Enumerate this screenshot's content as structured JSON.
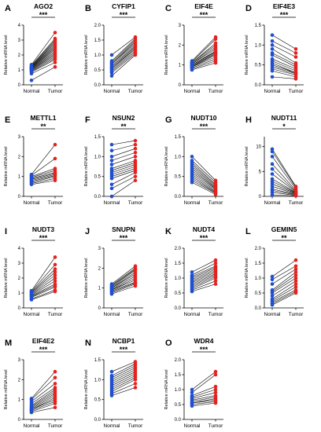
{
  "chart_data": [
    {
      "type": "scatter",
      "letter": "A",
      "title": "AGO2",
      "ylabel": "Relative mRNA level",
      "categories": [
        "Normal",
        "Tumor"
      ],
      "significance": "***",
      "ylim": [
        0,
        4
      ],
      "yticks": [
        0,
        1,
        2,
        3,
        4
      ],
      "normal": [
        0.3,
        0.75,
        0.85,
        0.9,
        0.95,
        1.0,
        1.0,
        1.05,
        1.05,
        1.1,
        1.1,
        1.15,
        1.15,
        1.2,
        1.2,
        1.25,
        1.3,
        1.35
      ],
      "tumor": [
        1.2,
        1.5,
        1.7,
        1.8,
        1.9,
        2.0,
        2.1,
        2.2,
        2.3,
        2.4,
        2.5,
        2.6,
        2.7,
        2.8,
        2.9,
        3.0,
        3.1,
        3.5
      ],
      "colors": {
        "normal": "#1f4fd1",
        "tumor": "#e3221f"
      }
    },
    {
      "type": "scatter",
      "letter": "B",
      "title": "CYFIP1",
      "ylabel": "Relative mRNA level",
      "categories": [
        "Normal",
        "Tumor"
      ],
      "significance": "***",
      "ylim": [
        0,
        2.0
      ],
      "yticks": [
        0,
        0.5,
        1.0,
        1.5,
        2.0
      ],
      "normal": [
        0.3,
        0.4,
        0.45,
        0.5,
        0.55,
        0.55,
        0.6,
        0.6,
        0.65,
        0.7,
        0.7,
        0.75,
        0.8,
        1.0
      ],
      "tumor": [
        1.0,
        1.05,
        1.1,
        1.15,
        1.2,
        1.25,
        1.3,
        1.3,
        1.35,
        1.4,
        1.45,
        1.5,
        1.55,
        1.6
      ],
      "colors": {
        "normal": "#1f4fd1",
        "tumor": "#e3221f"
      }
    },
    {
      "type": "scatter",
      "letter": "C",
      "title": "EIF4E",
      "ylabel": "Relative mRNA level",
      "categories": [
        "Normal",
        "Tumor"
      ],
      "significance": "***",
      "ylim": [
        0,
        3
      ],
      "yticks": [
        0,
        1,
        2,
        3
      ],
      "normal": [
        0.75,
        0.8,
        0.85,
        0.9,
        0.9,
        0.95,
        0.95,
        1.0,
        1.0,
        1.05,
        1.05,
        1.1,
        1.1,
        1.15,
        1.2
      ],
      "tumor": [
        1.1,
        1.2,
        1.3,
        1.4,
        1.5,
        1.55,
        1.6,
        1.65,
        1.7,
        1.8,
        1.9,
        2.0,
        2.1,
        2.3,
        2.4
      ],
      "colors": {
        "normal": "#1f4fd1",
        "tumor": "#e3221f"
      }
    },
    {
      "type": "scatter",
      "letter": "D",
      "title": "EIF4E3",
      "ylabel": "Relative mRNA level",
      "categories": [
        "Normal",
        "Tumor"
      ],
      "significance": "***",
      "ylim": [
        0,
        1.5
      ],
      "yticks": [
        0,
        0.5,
        1.0,
        1.5
      ],
      "normal": [
        0.2,
        0.35,
        0.4,
        0.45,
        0.5,
        0.55,
        0.6,
        0.65,
        0.75,
        0.8,
        0.9,
        1.0,
        1.1,
        1.25
      ],
      "tumor": [
        0.15,
        0.2,
        0.25,
        0.28,
        0.3,
        0.3,
        0.35,
        0.4,
        0.45,
        0.5,
        0.55,
        0.7,
        0.8,
        0.9
      ],
      "colors": {
        "normal": "#1f4fd1",
        "tumor": "#e3221f"
      }
    },
    {
      "type": "scatter",
      "letter": "E",
      "title": "METTL1",
      "ylabel": "Relative mRNA level",
      "categories": [
        "Normal",
        "Tumor"
      ],
      "significance": "**",
      "ylim": [
        0,
        3
      ],
      "yticks": [
        0,
        1,
        2,
        3
      ],
      "normal": [
        0.6,
        0.65,
        0.7,
        0.75,
        0.8,
        0.85,
        0.9,
        0.95,
        1.0,
        1.05,
        1.1
      ],
      "tumor": [
        0.8,
        0.9,
        1.0,
        1.05,
        1.1,
        1.15,
        1.2,
        1.3,
        1.4,
        1.9,
        2.6
      ],
      "colors": {
        "normal": "#1f4fd1",
        "tumor": "#e3221f"
      }
    },
    {
      "type": "scatter",
      "letter": "F",
      "title": "NSUN2",
      "ylabel": "Relative mRNA level",
      "categories": [
        "Normal",
        "Tumor"
      ],
      "significance": "**",
      "ylim": [
        0,
        1.5
      ],
      "yticks": [
        0,
        0.5,
        1.0,
        1.5
      ],
      "normal": [
        0.0,
        0.2,
        0.3,
        0.45,
        0.5,
        0.55,
        0.6,
        0.65,
        0.7,
        0.8,
        0.9,
        1.0,
        1.15,
        1.3
      ],
      "tumor": [
        0.4,
        0.5,
        0.6,
        0.65,
        0.7,
        0.75,
        0.8,
        0.85,
        0.9,
        1.0,
        1.1,
        1.2,
        1.3,
        1.4
      ],
      "colors": {
        "normal": "#1f4fd1",
        "tumor": "#e3221f"
      }
    },
    {
      "type": "scatter",
      "letter": "G",
      "title": "NUDT10",
      "ylabel": "Relative mRNA level",
      "categories": [
        "Normal",
        "Tumor"
      ],
      "significance": "***",
      "ylim": [
        0,
        1.5
      ],
      "yticks": [
        0,
        0.5,
        1.0,
        1.5
      ],
      "normal": [
        0.35,
        0.4,
        0.45,
        0.5,
        0.55,
        0.6,
        0.65,
        0.7,
        0.75,
        0.8,
        0.85,
        0.9,
        1.0
      ],
      "tumor": [
        0.05,
        0.08,
        0.1,
        0.12,
        0.15,
        0.18,
        0.2,
        0.22,
        0.25,
        0.28,
        0.3,
        0.35,
        0.4
      ],
      "colors": {
        "normal": "#1f4fd1",
        "tumor": "#e3221f"
      }
    },
    {
      "type": "scatter",
      "letter": "H",
      "title": "NUDT11",
      "ylabel": "Relative mRNA level",
      "categories": [
        "Normal",
        "Tumor"
      ],
      "significance": "*",
      "ylim": [
        0,
        12
      ],
      "yticks": [
        0,
        5,
        10
      ],
      "normal": [
        0.3,
        0.8,
        1.2,
        1.5,
        2.0,
        2.5,
        3.0,
        3.5,
        4.5,
        5.5,
        6.5,
        8.0,
        9.0,
        9.5
      ],
      "tumor": [
        0.1,
        0.2,
        0.3,
        0.4,
        0.5,
        0.6,
        0.7,
        0.8,
        0.9,
        1.0,
        1.2,
        1.5,
        1.8,
        2.0
      ],
      "colors": {
        "normal": "#1f4fd1",
        "tumor": "#e3221f"
      }
    },
    {
      "type": "scatter",
      "letter": "I",
      "title": "NUDT3",
      "ylabel": "Relative mRNA level",
      "categories": [
        "Normal",
        "Tumor"
      ],
      "significance": "***",
      "ylim": [
        0,
        4
      ],
      "yticks": [
        0,
        1,
        2,
        3,
        4
      ],
      "normal": [
        0.55,
        0.6,
        0.7,
        0.75,
        0.8,
        0.85,
        0.9,
        0.95,
        1.0,
        1.05,
        1.1,
        1.15
      ],
      "tumor": [
        1.1,
        1.2,
        1.4,
        1.5,
        1.6,
        1.8,
        2.0,
        2.2,
        2.4,
        2.6,
        2.9,
        3.4
      ],
      "colors": {
        "normal": "#1f4fd1",
        "tumor": "#e3221f"
      }
    },
    {
      "type": "scatter",
      "letter": "J",
      "title": "SNUPN",
      "ylabel": "Relative mRNA level",
      "categories": [
        "Normal",
        "Tumor"
      ],
      "significance": "***",
      "ylim": [
        0,
        3
      ],
      "yticks": [
        0,
        1,
        2,
        3
      ],
      "normal": [
        0.7,
        0.75,
        0.8,
        0.85,
        0.9,
        0.9,
        0.95,
        1.0,
        1.0,
        1.05,
        1.1,
        1.15,
        1.2
      ],
      "tumor": [
        1.1,
        1.2,
        1.25,
        1.3,
        1.4,
        1.5,
        1.6,
        1.7,
        1.8,
        1.9,
        1.95,
        2.0,
        2.1
      ],
      "colors": {
        "normal": "#1f4fd1",
        "tumor": "#e3221f"
      }
    },
    {
      "type": "scatter",
      "letter": "K",
      "title": "NUDT4",
      "ylabel": "Relative mRNA level",
      "categories": [
        "Normal",
        "Tumor"
      ],
      "significance": "***",
      "ylim": [
        0,
        2.0
      ],
      "yticks": [
        0,
        0.5,
        1.0,
        1.5,
        2.0
      ],
      "normal": [
        0.55,
        0.6,
        0.65,
        0.7,
        0.75,
        0.8,
        0.85,
        0.9,
        0.95,
        1.0,
        1.05,
        1.1,
        1.2
      ],
      "tumor": [
        0.8,
        0.9,
        1.0,
        1.05,
        1.1,
        1.15,
        1.2,
        1.25,
        1.3,
        1.35,
        1.4,
        1.5,
        1.6
      ],
      "colors": {
        "normal": "#1f4fd1",
        "tumor": "#e3221f"
      }
    },
    {
      "type": "scatter",
      "letter": "L",
      "title": "GEMIN5",
      "ylabel": "Relative mRNA level",
      "categories": [
        "Normal",
        "Tumor"
      ],
      "significance": "**",
      "ylim": [
        0,
        2.0
      ],
      "yticks": [
        0,
        0.5,
        1.0,
        1.5,
        2.0
      ],
      "normal": [
        0.1,
        0.15,
        0.2,
        0.25,
        0.3,
        0.4,
        0.5,
        0.55,
        0.6,
        0.8,
        0.95,
        1.05
      ],
      "tumor": [
        0.5,
        0.55,
        0.6,
        0.7,
        0.8,
        0.9,
        1.0,
        1.1,
        1.2,
        1.3,
        1.4,
        1.6
      ],
      "colors": {
        "normal": "#1f4fd1",
        "tumor": "#e3221f"
      }
    },
    {
      "type": "scatter",
      "letter": "M",
      "title": "EIF4E2",
      "ylabel": "Relative mRNA level",
      "categories": [
        "Normal",
        "Tumor"
      ],
      "significance": "***",
      "ylim": [
        0,
        3
      ],
      "yticks": [
        0,
        1,
        2,
        3
      ],
      "normal": [
        0.35,
        0.4,
        0.45,
        0.5,
        0.5,
        0.55,
        0.6,
        0.65,
        0.7,
        0.8,
        0.9,
        1.0,
        1.05
      ],
      "tumor": [
        0.6,
        0.8,
        0.9,
        1.0,
        1.1,
        1.2,
        1.3,
        1.4,
        1.5,
        1.6,
        1.8,
        2.1,
        2.4
      ],
      "colors": {
        "normal": "#1f4fd1",
        "tumor": "#e3221f"
      }
    },
    {
      "type": "scatter",
      "letter": "N",
      "title": "NCBP1",
      "ylabel": "Relative mRNA level",
      "categories": [
        "Normal",
        "Tumor"
      ],
      "significance": "***",
      "ylim": [
        0,
        1.5
      ],
      "yticks": [
        0,
        0.5,
        1.0,
        1.5
      ],
      "normal": [
        0.6,
        0.65,
        0.7,
        0.75,
        0.8,
        0.85,
        0.9,
        0.95,
        1.0,
        1.05,
        1.1,
        1.2
      ],
      "tumor": [
        0.8,
        0.9,
        1.0,
        1.05,
        1.1,
        1.15,
        1.2,
        1.25,
        1.3,
        1.35,
        1.4,
        1.45
      ],
      "colors": {
        "normal": "#1f4fd1",
        "tumor": "#e3221f"
      }
    },
    {
      "type": "scatter",
      "letter": "O",
      "title": "WDR4",
      "ylabel": "Relative mRNA level",
      "categories": [
        "Normal",
        "Tumor"
      ],
      "significance": "***",
      "ylim": [
        0,
        2.0
      ],
      "yticks": [
        0,
        0.5,
        1.0,
        1.5,
        2.0
      ],
      "normal": [
        0.45,
        0.5,
        0.55,
        0.55,
        0.6,
        0.65,
        0.7,
        0.75,
        0.8,
        0.9,
        1.0
      ],
      "tumor": [
        0.55,
        0.6,
        0.65,
        0.7,
        0.75,
        0.8,
        0.9,
        1.0,
        1.1,
        1.5,
        1.6
      ],
      "colors": {
        "normal": "#1f4fd1",
        "tumor": "#e3221f"
      }
    }
  ]
}
